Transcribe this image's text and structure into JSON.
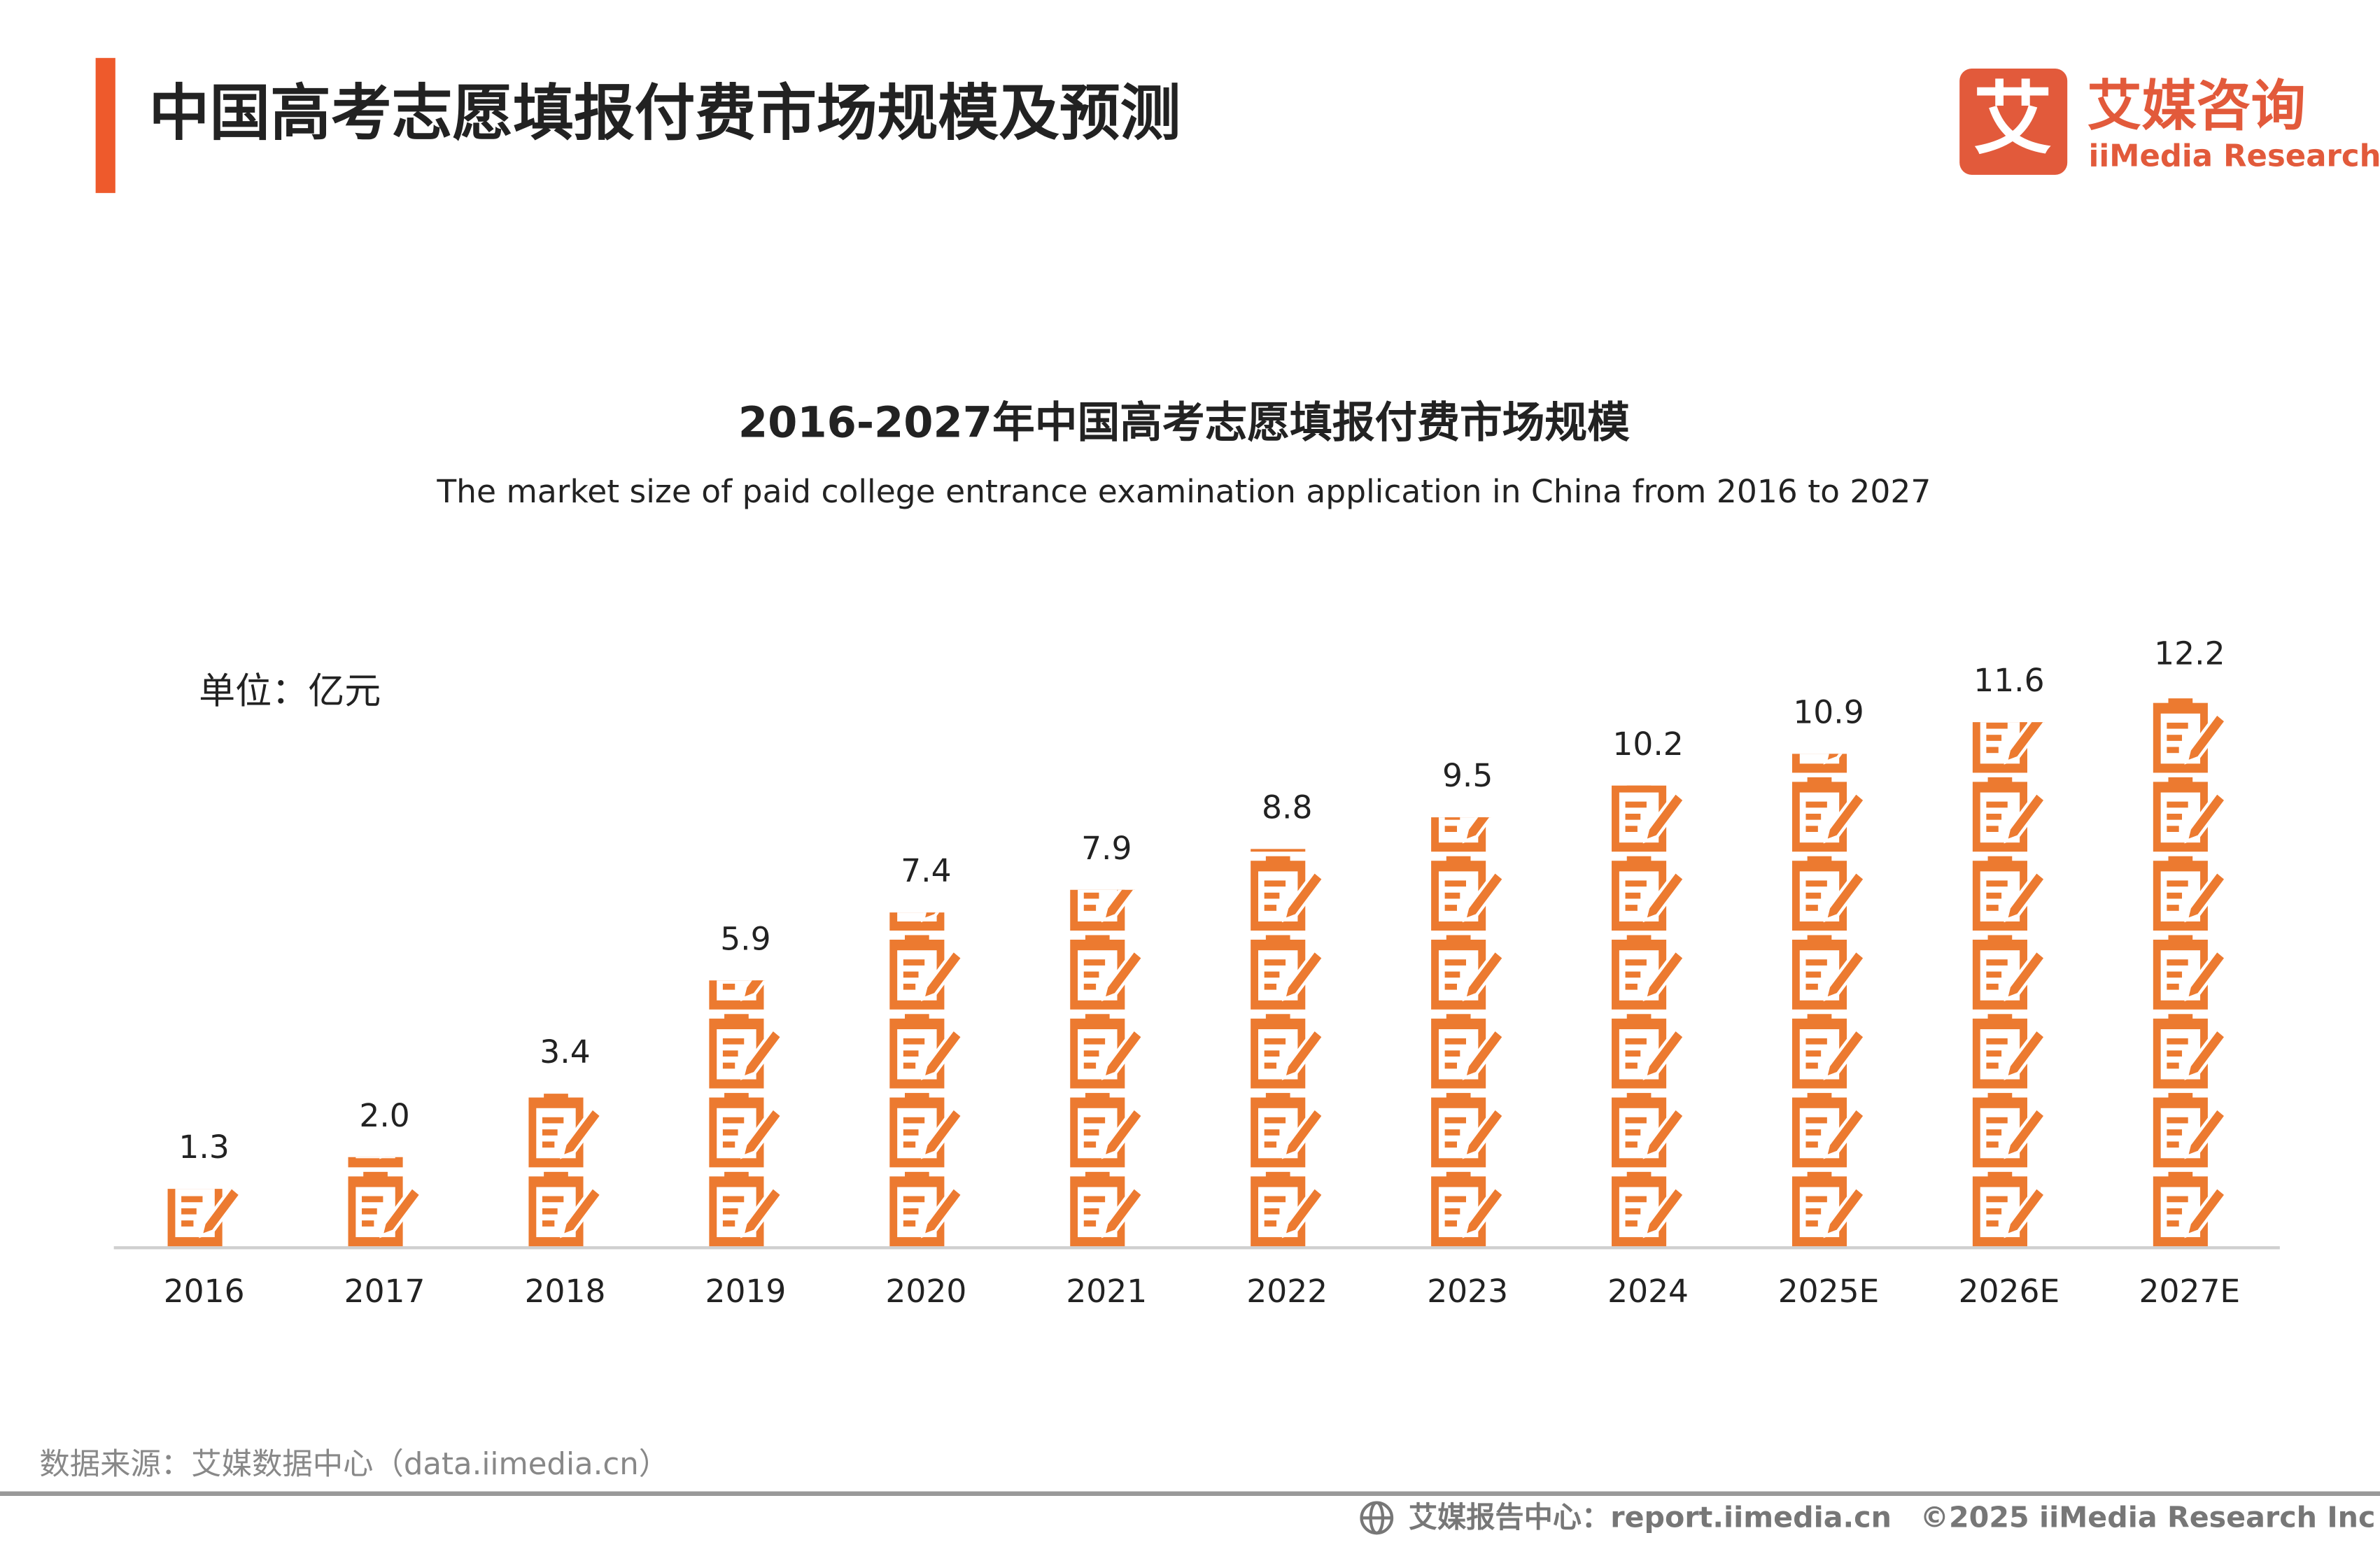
{
  "header": {
    "title": "中国高考志愿填报付费市场规模及预测",
    "logo_cn": "艾媒咨询",
    "logo_mark": "艾",
    "logo_en": "iiMedia Research"
  },
  "chart_data": {
    "type": "pictograph",
    "title": "2016-2027年中国高考志愿填报付费市场规模",
    "subtitle": "The market size of paid college entrance examination application in China from 2016 to 2027",
    "unit_label": "单位：亿元",
    "categories": [
      "2016",
      "2017",
      "2018",
      "2019",
      "2020",
      "2021",
      "2022",
      "2023",
      "2024",
      "2025E",
      "2026E",
      "2027E"
    ],
    "values": [
      1.3,
      2,
      3.4,
      5.9,
      7.4,
      7.9,
      8.8,
      9.5,
      10.2,
      10.9,
      11.6,
      12.2
    ],
    "value_labels": [
      "1.3",
      "2.0",
      "3.4",
      "5.9",
      "7.4",
      "7.9",
      "8.8",
      "9.5",
      "10.2",
      "10.9",
      "11.6",
      "12.2"
    ],
    "color": "#ec7a30",
    "ylim": [
      0,
      14
    ]
  },
  "footer": {
    "source": "数据来源：艾媒数据中心（data.iimedia.cn）",
    "report": "艾媒报告中心：report.iimedia.cn",
    "copyright": "©2025  iiMedia Research  Inc"
  }
}
